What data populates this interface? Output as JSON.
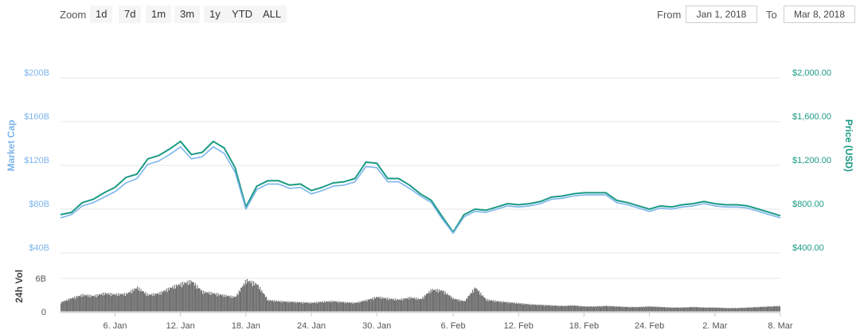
{
  "toolbar": {
    "zoom_label": "Zoom",
    "zoom_buttons": [
      "1d",
      "7d",
      "1m",
      "3m",
      "1y",
      "YTD",
      "ALL"
    ],
    "from_label": "From",
    "from_value": "Jan 1, 2018",
    "to_label": "To",
    "to_value": "Mar 8, 2018"
  },
  "chart_data": {
    "type": "line",
    "x_range": [
      "2018-01-01",
      "2018-03-08"
    ],
    "left_axis": {
      "title": "Market Cap",
      "ticks": [
        40,
        80,
        120,
        160,
        200
      ],
      "tick_labels": [
        "$40B",
        "$80B",
        "$120B",
        "$160B",
        "$200B"
      ],
      "ylim": [
        40,
        200
      ]
    },
    "right_axis": {
      "title": "Price (USD)",
      "ticks": [
        400,
        800,
        1200,
        1600,
        2000
      ],
      "tick_labels": [
        "$400.00",
        "$800.00",
        "$1,200.00",
        "$1,600.00",
        "$2,000.00"
      ],
      "ylim": [
        400,
        2000
      ]
    },
    "volume_axis": {
      "title": "24h Vol",
      "ticks": [
        0,
        6
      ],
      "tick_labels": [
        "0",
        "6B"
      ],
      "ylim": [
        0,
        8
      ]
    },
    "x_ticks": [
      {
        "date": "2018-01-06",
        "label": "6. Jan"
      },
      {
        "date": "2018-01-12",
        "label": "12. Jan"
      },
      {
        "date": "2018-01-18",
        "label": "18. Jan"
      },
      {
        "date": "2018-01-24",
        "label": "24. Jan"
      },
      {
        "date": "2018-01-30",
        "label": "30. Jan"
      },
      {
        "date": "2018-02-06",
        "label": "6. Feb"
      },
      {
        "date": "2018-02-12",
        "label": "12. Feb"
      },
      {
        "date": "2018-02-18",
        "label": "18. Feb"
      },
      {
        "date": "2018-02-24",
        "label": "24. Feb"
      },
      {
        "date": "2018-03-02",
        "label": "2. Mar"
      },
      {
        "date": "2018-03-08",
        "label": "8. Mar"
      }
    ],
    "series": [
      {
        "axis": "right",
        "color": "#1a9a84",
        "points": [
          [
            "2018-01-01",
            750
          ],
          [
            "2018-01-02",
            770
          ],
          [
            "2018-01-03",
            860
          ],
          [
            "2018-01-04",
            890
          ],
          [
            "2018-01-05",
            950
          ],
          [
            "2018-01-06",
            1000
          ],
          [
            "2018-01-07",
            1090
          ],
          [
            "2018-01-08",
            1120
          ],
          [
            "2018-01-09",
            1260
          ],
          [
            "2018-01-10",
            1290
          ],
          [
            "2018-01-11",
            1350
          ],
          [
            "2018-01-12",
            1420
          ],
          [
            "2018-01-13",
            1300
          ],
          [
            "2018-01-14",
            1320
          ],
          [
            "2018-01-15",
            1420
          ],
          [
            "2018-01-16",
            1360
          ],
          [
            "2018-01-17",
            1180
          ],
          [
            "2018-01-18",
            820
          ],
          [
            "2018-01-19",
            1010
          ],
          [
            "2018-01-20",
            1060
          ],
          [
            "2018-01-21",
            1060
          ],
          [
            "2018-01-22",
            1020
          ],
          [
            "2018-01-23",
            1030
          ],
          [
            "2018-01-24",
            970
          ],
          [
            "2018-01-25",
            1000
          ],
          [
            "2018-01-26",
            1040
          ],
          [
            "2018-01-27",
            1050
          ],
          [
            "2018-01-28",
            1080
          ],
          [
            "2018-01-29",
            1230
          ],
          [
            "2018-01-30",
            1220
          ],
          [
            "2018-01-31",
            1080
          ],
          [
            "2018-02-01",
            1080
          ],
          [
            "2018-02-02",
            1020
          ],
          [
            "2018-02-03",
            940
          ],
          [
            "2018-02-04",
            880
          ],
          [
            "2018-02-05",
            730
          ],
          [
            "2018-02-06",
            590
          ],
          [
            "2018-02-07",
            750
          ],
          [
            "2018-02-08",
            800
          ],
          [
            "2018-02-09",
            790
          ],
          [
            "2018-02-10",
            820
          ],
          [
            "2018-02-11",
            850
          ],
          [
            "2018-02-12",
            840
          ],
          [
            "2018-02-13",
            850
          ],
          [
            "2018-02-14",
            870
          ],
          [
            "2018-02-15",
            910
          ],
          [
            "2018-02-16",
            920
          ],
          [
            "2018-02-17",
            940
          ],
          [
            "2018-02-18",
            950
          ],
          [
            "2018-02-19",
            950
          ],
          [
            "2018-02-20",
            950
          ],
          [
            "2018-02-21",
            880
          ],
          [
            "2018-02-22",
            860
          ],
          [
            "2018-02-23",
            830
          ],
          [
            "2018-02-24",
            800
          ],
          [
            "2018-02-25",
            830
          ],
          [
            "2018-02-26",
            820
          ],
          [
            "2018-02-27",
            840
          ],
          [
            "2018-02-28",
            850
          ],
          [
            "2018-03-01",
            870
          ],
          [
            "2018-03-02",
            850
          ],
          [
            "2018-03-03",
            840
          ],
          [
            "2018-03-04",
            840
          ],
          [
            "2018-03-05",
            830
          ],
          [
            "2018-03-06",
            800
          ],
          [
            "2018-03-07",
            770
          ],
          [
            "2018-03-08",
            740
          ]
        ]
      },
      {
        "axis": "left",
        "color": "#7cb5ec",
        "points": [
          [
            "2018-01-01",
            72
          ],
          [
            "2018-01-02",
            75
          ],
          [
            "2018-01-03",
            83
          ],
          [
            "2018-01-04",
            86
          ],
          [
            "2018-01-05",
            91
          ],
          [
            "2018-01-06",
            96
          ],
          [
            "2018-01-07",
            104
          ],
          [
            "2018-01-08",
            108
          ],
          [
            "2018-01-09",
            121
          ],
          [
            "2018-01-10",
            124
          ],
          [
            "2018-01-11",
            130
          ],
          [
            "2018-01-12",
            137
          ],
          [
            "2018-01-13",
            126
          ],
          [
            "2018-01-14",
            128
          ],
          [
            "2018-01-15",
            137
          ],
          [
            "2018-01-16",
            131
          ],
          [
            "2018-01-17",
            114
          ],
          [
            "2018-01-18",
            80
          ],
          [
            "2018-01-19",
            98
          ],
          [
            "2018-01-20",
            103
          ],
          [
            "2018-01-21",
            103
          ],
          [
            "2018-01-22",
            99
          ],
          [
            "2018-01-23",
            100
          ],
          [
            "2018-01-24",
            94
          ],
          [
            "2018-01-25",
            97
          ],
          [
            "2018-01-26",
            101
          ],
          [
            "2018-01-27",
            102
          ],
          [
            "2018-01-28",
            105
          ],
          [
            "2018-01-29",
            119
          ],
          [
            "2018-01-30",
            118
          ],
          [
            "2018-01-31",
            105
          ],
          [
            "2018-02-01",
            105
          ],
          [
            "2018-02-02",
            99
          ],
          [
            "2018-02-03",
            92
          ],
          [
            "2018-02-04",
            86
          ],
          [
            "2018-02-05",
            71
          ],
          [
            "2018-02-06",
            58
          ],
          [
            "2018-02-07",
            73
          ],
          [
            "2018-02-08",
            78
          ],
          [
            "2018-02-09",
            77
          ],
          [
            "2018-02-10",
            80
          ],
          [
            "2018-02-11",
            83
          ],
          [
            "2018-02-12",
            82
          ],
          [
            "2018-02-13",
            83
          ],
          [
            "2018-02-14",
            85
          ],
          [
            "2018-02-15",
            89
          ],
          [
            "2018-02-16",
            90
          ],
          [
            "2018-02-17",
            92
          ],
          [
            "2018-02-18",
            93
          ],
          [
            "2018-02-19",
            93
          ],
          [
            "2018-02-20",
            93
          ],
          [
            "2018-02-21",
            86
          ],
          [
            "2018-02-22",
            84
          ],
          [
            "2018-02-23",
            81
          ],
          [
            "2018-02-24",
            78
          ],
          [
            "2018-02-25",
            81
          ],
          [
            "2018-02-26",
            80
          ],
          [
            "2018-02-27",
            82
          ],
          [
            "2018-02-28",
            83
          ],
          [
            "2018-03-01",
            85
          ],
          [
            "2018-03-02",
            83
          ],
          [
            "2018-03-03",
            82
          ],
          [
            "2018-03-04",
            82
          ],
          [
            "2018-03-05",
            81
          ],
          [
            "2018-03-06",
            78
          ],
          [
            "2018-03-07",
            75
          ],
          [
            "2018-03-08",
            72
          ]
        ]
      }
    ],
    "volume": {
      "axis": "volume",
      "color": "#6e6e6e",
      "points": [
        [
          "2018-01-01",
          1.8
        ],
        [
          "2018-01-02",
          2.6
        ],
        [
          "2018-01-03",
          3.2
        ],
        [
          "2018-01-04",
          3.0
        ],
        [
          "2018-01-05",
          3.5
        ],
        [
          "2018-01-06",
          3.3
        ],
        [
          "2018-01-07",
          3.4
        ],
        [
          "2018-01-08",
          4.6
        ],
        [
          "2018-01-09",
          3.2
        ],
        [
          "2018-01-10",
          3.5
        ],
        [
          "2018-01-11",
          4.5
        ],
        [
          "2018-01-12",
          5.3
        ],
        [
          "2018-01-13",
          5.8
        ],
        [
          "2018-01-14",
          3.8
        ],
        [
          "2018-01-15",
          3.5
        ],
        [
          "2018-01-16",
          3.1
        ],
        [
          "2018-01-17",
          2.8
        ],
        [
          "2018-01-18",
          6.0
        ],
        [
          "2018-01-19",
          5.2
        ],
        [
          "2018-01-20",
          2.2
        ],
        [
          "2018-01-21",
          2.0
        ],
        [
          "2018-01-22",
          1.9
        ],
        [
          "2018-01-23",
          1.8
        ],
        [
          "2018-01-24",
          1.7
        ],
        [
          "2018-01-25",
          1.9
        ],
        [
          "2018-01-26",
          2.0
        ],
        [
          "2018-01-27",
          1.8
        ],
        [
          "2018-01-28",
          1.7
        ],
        [
          "2018-01-29",
          2.2
        ],
        [
          "2018-01-30",
          2.8
        ],
        [
          "2018-01-31",
          2.5
        ],
        [
          "2018-02-01",
          2.3
        ],
        [
          "2018-02-02",
          2.7
        ],
        [
          "2018-02-03",
          2.4
        ],
        [
          "2018-02-04",
          4.2
        ],
        [
          "2018-02-05",
          4.0
        ],
        [
          "2018-02-06",
          2.5
        ],
        [
          "2018-02-07",
          2.0
        ],
        [
          "2018-02-08",
          4.6
        ],
        [
          "2018-02-09",
          2.3
        ],
        [
          "2018-02-10",
          2.0
        ],
        [
          "2018-02-11",
          1.8
        ],
        [
          "2018-02-12",
          1.6
        ],
        [
          "2018-02-13",
          1.4
        ],
        [
          "2018-02-14",
          1.3
        ],
        [
          "2018-02-15",
          1.2
        ],
        [
          "2018-02-16",
          1.1
        ],
        [
          "2018-02-17",
          1.2
        ],
        [
          "2018-02-18",
          1.0
        ],
        [
          "2018-02-19",
          1.0
        ],
        [
          "2018-02-20",
          1.1
        ],
        [
          "2018-02-21",
          1.0
        ],
        [
          "2018-02-22",
          0.9
        ],
        [
          "2018-02-23",
          0.9
        ],
        [
          "2018-02-24",
          1.0
        ],
        [
          "2018-02-25",
          0.9
        ],
        [
          "2018-02-26",
          0.8
        ],
        [
          "2018-02-27",
          0.8
        ],
        [
          "2018-02-28",
          0.9
        ],
        [
          "2018-03-01",
          0.8
        ],
        [
          "2018-03-02",
          0.8
        ],
        [
          "2018-03-03",
          0.7
        ],
        [
          "2018-03-04",
          0.7
        ],
        [
          "2018-03-05",
          0.8
        ],
        [
          "2018-03-06",
          0.9
        ],
        [
          "2018-03-07",
          1.0
        ],
        [
          "2018-03-08",
          1.1
        ]
      ]
    },
    "grid": true,
    "legend": "none"
  }
}
